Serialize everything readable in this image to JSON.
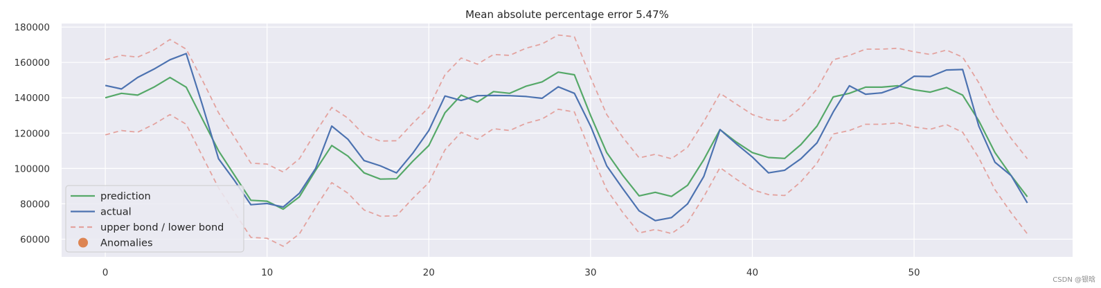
{
  "chart_data": {
    "type": "line",
    "title": "Mean absolute percentage error 5.47%",
    "xlabel": "",
    "ylabel": "",
    "xlim": [
      -2.7,
      59.8
    ],
    "ylim": [
      50000,
      182000
    ],
    "xticks": [
      0,
      10,
      20,
      30,
      40,
      50
    ],
    "yticks": [
      60000,
      80000,
      100000,
      120000,
      140000,
      160000,
      180000
    ],
    "grid": true,
    "legend_position": "lower-left",
    "x": [
      0,
      1,
      2,
      3,
      4,
      5,
      6,
      7,
      8,
      9,
      10,
      11,
      12,
      13,
      14,
      15,
      16,
      17,
      18,
      19,
      20,
      21,
      22,
      23,
      24,
      25,
      26,
      27,
      28,
      29,
      30,
      31,
      32,
      33,
      34,
      35,
      36,
      37,
      38,
      39,
      40,
      41,
      42,
      43,
      44,
      45,
      46,
      47,
      48,
      49,
      50,
      51,
      52,
      53,
      54,
      55,
      56,
      57
    ],
    "series": [
      {
        "name": "prediction",
        "color": "#55a868",
        "style": "solid",
        "values": [
          140000,
          142500,
          141500,
          146000,
          151500,
          146000,
          128000,
          110000,
          96000,
          82000,
          81500,
          77000,
          84000,
          99000,
          113000,
          107000,
          97500,
          94000,
          94200,
          104000,
          113000,
          131500,
          141500,
          137500,
          143500,
          142500,
          146500,
          149000,
          154500,
          153000,
          130000,
          109000,
          96000,
          84500,
          86500,
          84200,
          90500,
          105000,
          122000,
          115000,
          109000,
          106200,
          105700,
          113500,
          124000,
          140500,
          142500,
          146000,
          146000,
          146800,
          144500,
          143200,
          145800,
          141500,
          127000,
          109000,
          96000,
          84000
        ]
      },
      {
        "name": "actual",
        "color": "#4c72b0",
        "style": "solid",
        "values": [
          147000,
          145000,
          151500,
          156200,
          161500,
          165000,
          136000,
          105500,
          93000,
          79500,
          80200,
          78200,
          86000,
          100000,
          124000,
          116500,
          104500,
          101500,
          97500,
          108500,
          121500,
          141000,
          138500,
          141200,
          141300,
          141200,
          140700,
          139700,
          146200,
          142500,
          124000,
          101500,
          88500,
          76000,
          70500,
          72200,
          80000,
          95500,
          122000,
          114000,
          106500,
          97500,
          99000,
          105500,
          114500,
          132000,
          146800,
          142000,
          142800,
          146000,
          152200,
          152000,
          155700,
          156000,
          124000,
          103500,
          96000,
          80500
        ]
      },
      {
        "name": "upper bond / lower bond",
        "color": "#dd8452",
        "style": "dashed",
        "values": [
          161500,
          164000,
          163000,
          167000,
          173000,
          167500,
          150000,
          131500,
          117500,
          103000,
          102500,
          98000,
          105500,
          120500,
          134500,
          128500,
          119000,
          115500,
          115700,
          125500,
          134500,
          153000,
          162500,
          159000,
          164500,
          164000,
          168000,
          170500,
          175500,
          174500,
          151500,
          130500,
          117500,
          106000,
          108000,
          105500,
          112000,
          126500,
          142500,
          136500,
          130500,
          127500,
          127000,
          134500,
          145000,
          161500,
          164000,
          167500,
          167500,
          168000,
          166000,
          164500,
          167000,
          163000,
          148500,
          130500,
          117000,
          105500
        ]
      },
      {
        "name": "upper bond / lower bond",
        "color": "#dd8452",
        "style": "dashed",
        "values": [
          119000,
          121500,
          120500,
          125000,
          130500,
          125000,
          107000,
          89000,
          75000,
          61000,
          60500,
          56000,
          63000,
          78000,
          92000,
          86000,
          76500,
          73000,
          73200,
          83000,
          92000,
          110500,
          120500,
          116500,
          122500,
          121500,
          125500,
          128000,
          133500,
          132000,
          109000,
          88000,
          75000,
          63500,
          65500,
          63200,
          69500,
          84000,
          100500,
          94000,
          88000,
          85200,
          84700,
          92500,
          103000,
          119500,
          121500,
          125000,
          125000,
          125800,
          123500,
          122200,
          124800,
          120500,
          106000,
          88000,
          75000,
          63000
        ]
      }
    ],
    "legend": [
      {
        "label": "prediction",
        "kind": "line",
        "color": "#55a868"
      },
      {
        "label": "actual",
        "kind": "line",
        "color": "#4c72b0"
      },
      {
        "label": "upper bond / lower bond",
        "kind": "dashed",
        "color": "#dd8452"
      },
      {
        "label": "Anomalies",
        "kind": "marker",
        "color": "#dd8452"
      }
    ]
  },
  "watermark": "CSDN @银晗",
  "colors": {
    "background": "#eaeaf2",
    "grid": "#ffffff"
  }
}
